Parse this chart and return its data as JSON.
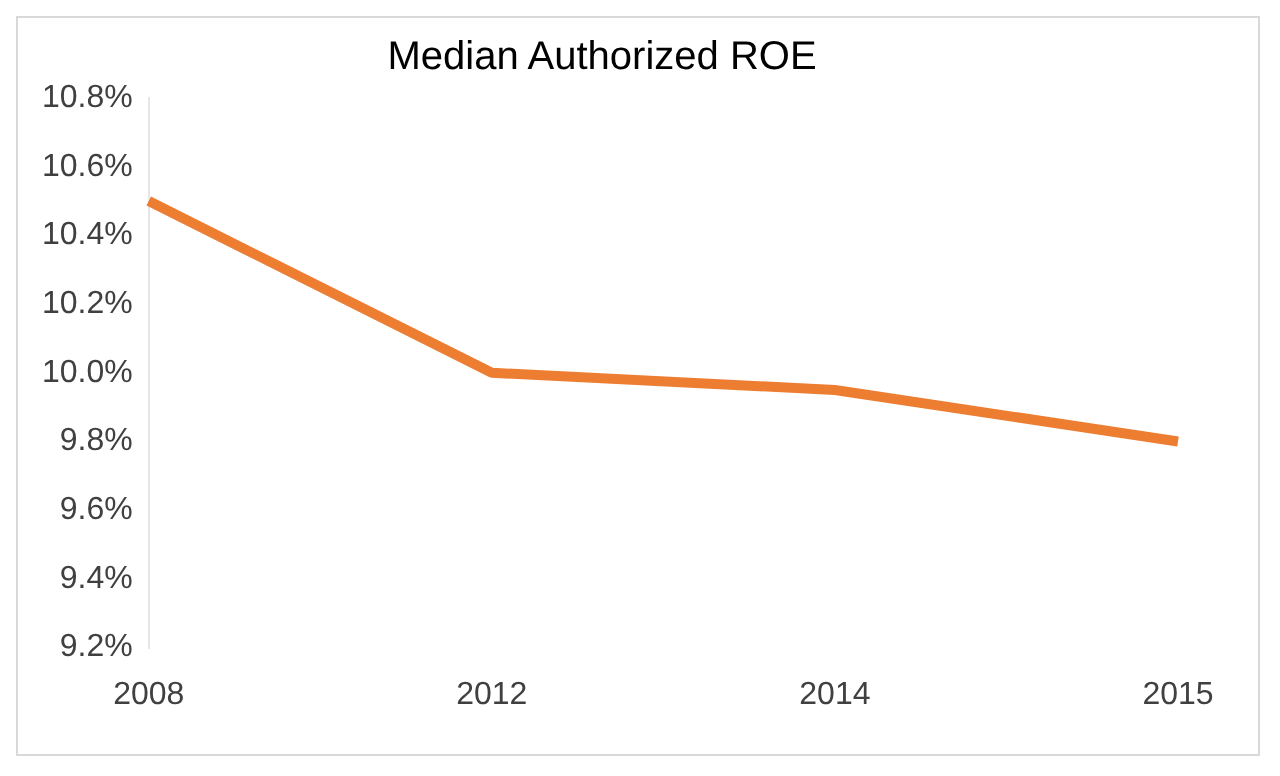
{
  "chart_data": {
    "type": "line",
    "title": "Median Authorized ROE",
    "categories": [
      "2008",
      "2012",
      "2014",
      "2015"
    ],
    "series": [
      {
        "color": "#ed7d31",
        "values": [
          10.5,
          10.0,
          9.95,
          9.8
        ]
      }
    ],
    "ylim": [
      9.2,
      10.8
    ],
    "yticks": [
      {
        "value": 9.2,
        "label": "9.2%"
      },
      {
        "value": 9.4,
        "label": "9.4%"
      },
      {
        "value": 9.6,
        "label": "9.6%"
      },
      {
        "value": 9.8,
        "label": "9.8%"
      },
      {
        "value": 10.0,
        "label": "10.0%"
      },
      {
        "value": 10.2,
        "label": "10.2%"
      },
      {
        "value": 10.4,
        "label": "10.4%"
      },
      {
        "value": 10.6,
        "label": "10.6%"
      },
      {
        "value": 10.8,
        "label": "10.8%"
      }
    ],
    "grid": false,
    "legend": false,
    "marker": "none",
    "line_style": "solid"
  }
}
